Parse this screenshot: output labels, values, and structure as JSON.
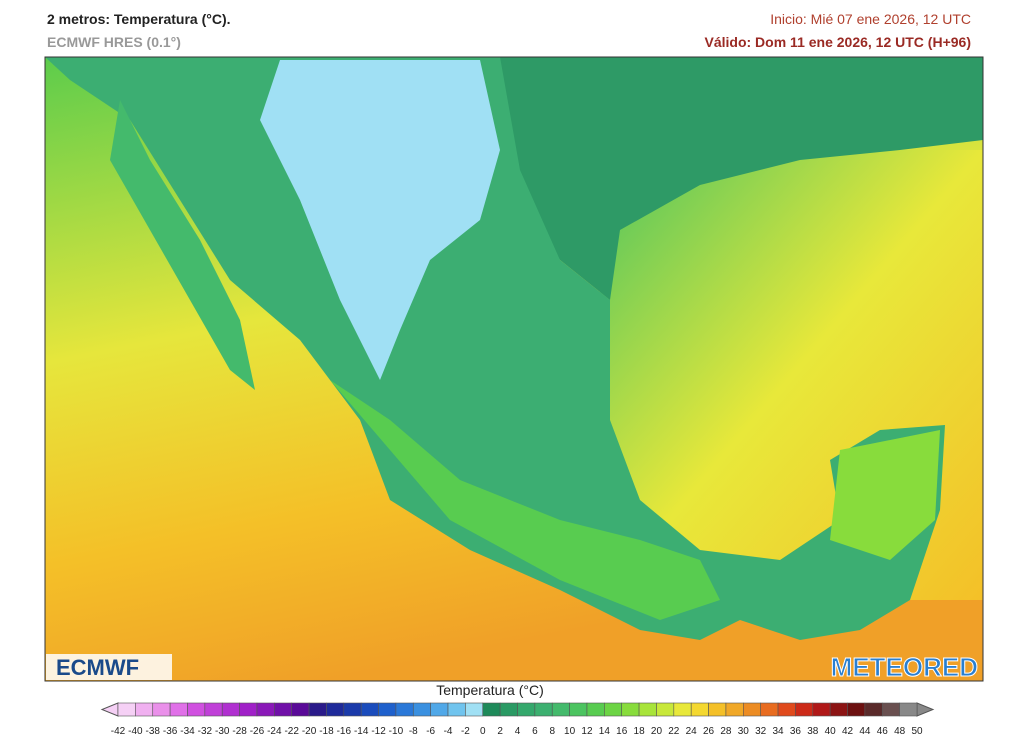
{
  "header": {
    "title": "2 metros: Temperatura (°C).",
    "model": "ECMWF HRES (0.1°)",
    "init": "Inicio: Mié 07 ene 2026, 12 UTC",
    "valid": "Válido: Dom 11 ene 2026, 12 UTC (H+96)"
  },
  "logos": {
    "left": "ECMWF",
    "right": "METEORED"
  },
  "legend": {
    "title": "Temperatura (°C)",
    "ticks": [
      -42,
      -40,
      -38,
      -36,
      -34,
      -32,
      -30,
      -28,
      -26,
      -24,
      -22,
      -20,
      -18,
      -16,
      -14,
      -12,
      -10,
      -8,
      -6,
      -4,
      -2,
      0,
      2,
      4,
      6,
      8,
      10,
      12,
      14,
      16,
      18,
      20,
      22,
      24,
      26,
      28,
      30,
      32,
      34,
      36,
      38,
      40,
      42,
      44,
      46,
      48,
      50
    ],
    "colors": [
      "#f5d0f5",
      "#f0b0f0",
      "#ea90ea",
      "#e070e8",
      "#d050e0",
      "#c040d8",
      "#b030d0",
      "#a020c8",
      "#8a18b8",
      "#7010a8",
      "#5a0a98",
      "#2a1a8a",
      "#1e2a9a",
      "#1a3aaa",
      "#1a4cbc",
      "#1e60cc",
      "#2a78d8",
      "#3a90e0",
      "#50a8e8",
      "#70c4ee",
      "#a0e0f4",
      "#1e8a5a",
      "#2a9a64",
      "#34a86c",
      "#3cb070",
      "#44ba6c",
      "#4cc460",
      "#58cc50",
      "#6cd444",
      "#88dc3c",
      "#a8e43a",
      "#c8e83a",
      "#e8e83a",
      "#f4d830",
      "#f4c028",
      "#f0a828",
      "#ec8c24",
      "#e86c20",
      "#e04a1c",
      "#cc2a18",
      "#b01818",
      "#8c1414",
      "#6c1010",
      "#5a2a2a",
      "#6a5050",
      "#888888"
    ]
  }
}
